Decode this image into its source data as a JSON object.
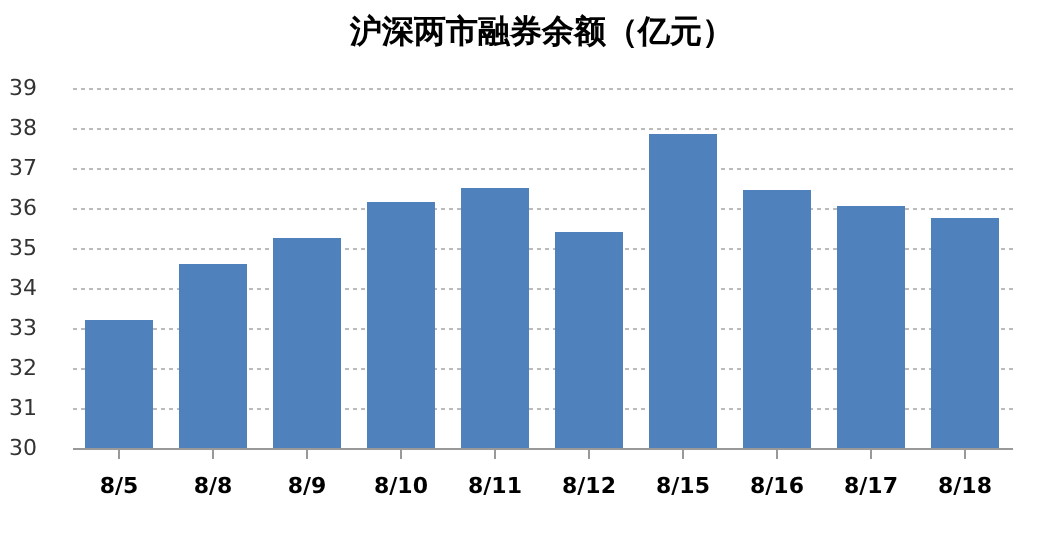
{
  "chart_data": {
    "type": "bar",
    "title": "沪深两市融券余额（亿元）",
    "categories": [
      "8/5",
      "8/8",
      "8/9",
      "8/10",
      "8/11",
      "8/12",
      "8/15",
      "8/16",
      "8/17",
      "8/18"
    ],
    "values": [
      33.2,
      34.6,
      35.25,
      36.15,
      36.5,
      35.4,
      37.85,
      36.45,
      36.05,
      35.75
    ],
    "color": "#4f81bd",
    "ylim": [
      30,
      39
    ],
    "yticks": [
      30,
      31,
      32,
      33,
      34,
      35,
      36,
      37,
      38,
      39
    ],
    "grid": "y"
  }
}
